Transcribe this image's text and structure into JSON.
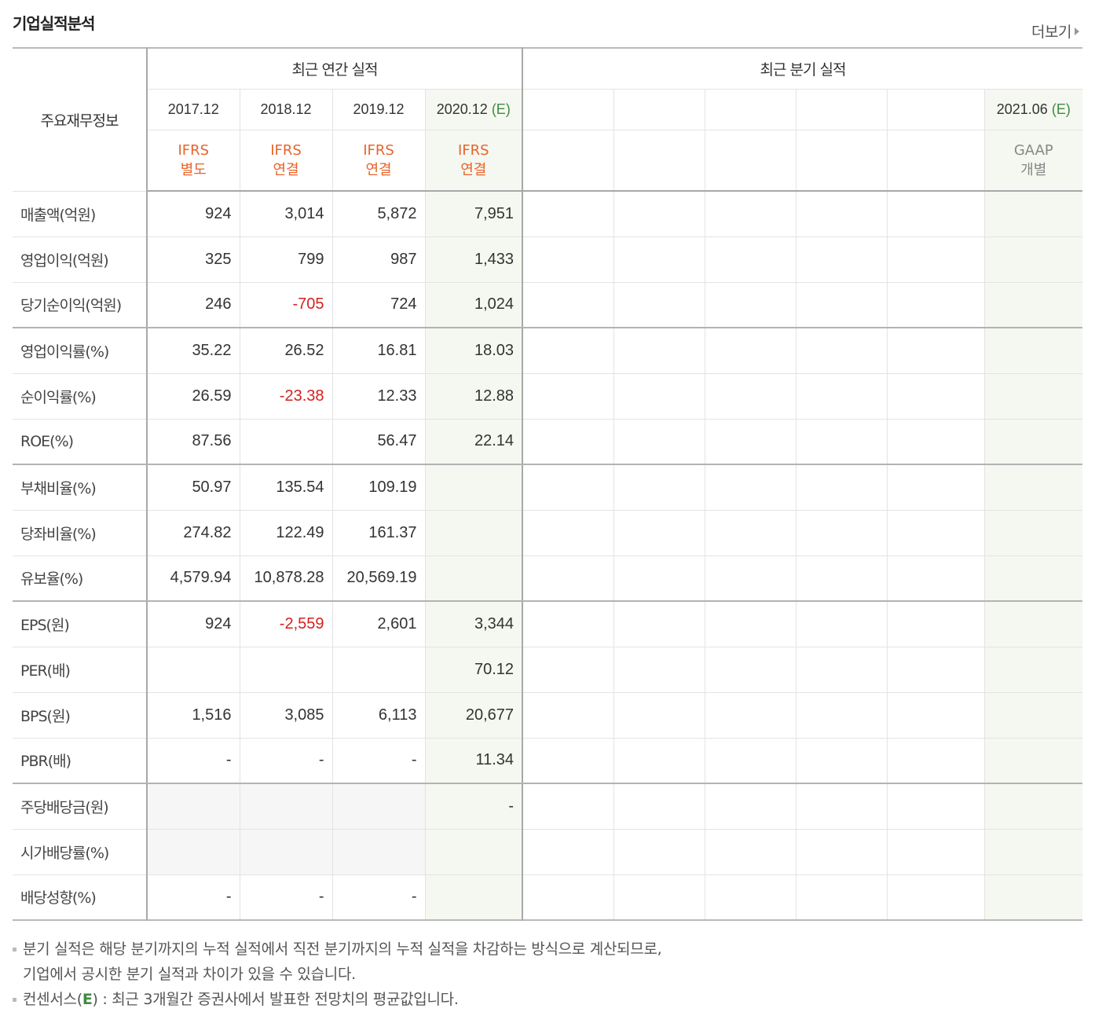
{
  "title": "기업실적분석",
  "more_link": "더보기",
  "header": {
    "label": "주요재무정보",
    "annual_group": "최근 연간 실적",
    "quarter_group": "최근 분기 실적",
    "annual_dates": [
      "2017.12",
      "2018.12",
      "2019.12",
      "2020.12"
    ],
    "annual_est_marks": [
      "",
      "",
      "",
      "(E)"
    ],
    "annual_acct": [
      [
        "IFRS",
        "별도"
      ],
      [
        "IFRS",
        "연결"
      ],
      [
        "IFRS",
        "연결"
      ],
      [
        "IFRS",
        "연결"
      ]
    ],
    "quarter_dates": [
      "",
      "",
      "",
      "",
      "",
      "2021.06"
    ],
    "quarter_est_marks": [
      "",
      "",
      "",
      "",
      "",
      "(E)"
    ],
    "quarter_acct": [
      [
        "",
        ""
      ],
      [
        "",
        ""
      ],
      [
        "",
        ""
      ],
      [
        "",
        ""
      ],
      [
        "",
        ""
      ],
      [
        "GAAP",
        "개별"
      ]
    ]
  },
  "rows": [
    {
      "label": "매출액(억원)",
      "annual": [
        "924",
        "3,014",
        "5,872",
        "7,951"
      ]
    },
    {
      "label": "영업이익(억원)",
      "annual": [
        "325",
        "799",
        "987",
        "1,433"
      ]
    },
    {
      "label": "당기순이익(억원)",
      "annual": [
        "246",
        "-705",
        "724",
        "1,024"
      ]
    },
    {
      "label": "영업이익률(%)",
      "annual": [
        "35.22",
        "26.52",
        "16.81",
        "18.03"
      ]
    },
    {
      "label": "순이익률(%)",
      "annual": [
        "26.59",
        "-23.38",
        "12.33",
        "12.88"
      ]
    },
    {
      "label": "ROE(%)",
      "annual": [
        "87.56",
        "",
        "56.47",
        "22.14"
      ]
    },
    {
      "label": "부채비율(%)",
      "annual": [
        "50.97",
        "135.54",
        "109.19",
        ""
      ]
    },
    {
      "label": "당좌비율(%)",
      "annual": [
        "274.82",
        "122.49",
        "161.37",
        ""
      ]
    },
    {
      "label": "유보율(%)",
      "annual": [
        "4,579.94",
        "10,878.28",
        "20,569.19",
        ""
      ]
    },
    {
      "label": "EPS(원)",
      "annual": [
        "924",
        "-2,559",
        "2,601",
        "3,344"
      ]
    },
    {
      "label": "PER(배)",
      "annual": [
        "",
        "",
        "",
        "70.12"
      ]
    },
    {
      "label": "BPS(원)",
      "annual": [
        "1,516",
        "3,085",
        "6,113",
        "20,677"
      ]
    },
    {
      "label": "PBR(배)",
      "annual": [
        "-",
        "-",
        "-",
        "11.34"
      ]
    },
    {
      "label": "주당배당금(원)",
      "annual": [
        "",
        "",
        "",
        "-"
      ]
    },
    {
      "label": "시가배당률(%)",
      "annual": [
        "",
        "",
        "",
        ""
      ]
    },
    {
      "label": "배당성향(%)",
      "annual": [
        "-",
        "-",
        "-",
        ""
      ]
    }
  ],
  "notes": {
    "line1": "분기 실적은 해당 분기까지의 누적 실적에서 직전 분기까지의 누적 실적을 차감하는 방식으로 계산되므로,",
    "line2": "기업에서 공시한 분기 실적과 차이가 있을 수 있습니다.",
    "line3_a": "컨센서스(",
    "line3_e": "E",
    "line3_b": ") : 최근 3개월간 증권사에서 발표한 전망치의 평균값입니다."
  },
  "colors": {
    "negative": "#d52020",
    "estimate": "#3f8a3f",
    "ifrs": "#e8642b",
    "estimate_col_bg": "#f4f8f0"
  }
}
